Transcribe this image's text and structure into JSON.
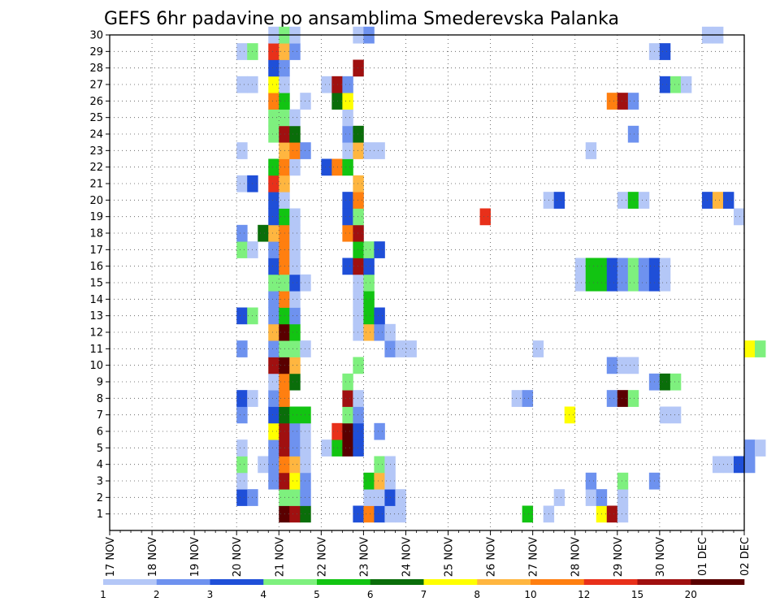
{
  "chart_data": {
    "type": "heatmap",
    "title": "GEFS 6hr padavine po ansamblima Smederevska Palanka",
    "xlabel": "",
    "ylabel": "",
    "x_tick_labels": [
      "17 NOV",
      "18 NOV",
      "19 NOV",
      "20 NOV",
      "21 NOV",
      "22 NOV",
      "23 NOV",
      "24 NOV",
      "25 NOV",
      "26 NOV",
      "27 NOV",
      "28 NOV",
      "29 NOV",
      "30 NOV",
      "01 DEC",
      "02 DEC"
    ],
    "y_tick_labels": [
      "1",
      "2",
      "3",
      "4",
      "5",
      "6",
      "7",
      "8",
      "9",
      "10",
      "11",
      "12",
      "13",
      "14",
      "15",
      "16",
      "17",
      "18",
      "19",
      "20",
      "21",
      "22",
      "23",
      "24",
      "25",
      "26",
      "27",
      "28",
      "29",
      "30"
    ],
    "x_range_days": [
      17,
      32
    ],
    "y_range_members": [
      0,
      30
    ],
    "grid": true,
    "grid_style": "dotted",
    "legend": {
      "placement": "bottom",
      "labels": [
        "1",
        "2",
        "3",
        "4",
        "5",
        "6",
        "7",
        "8",
        "10",
        "12",
        "15",
        "20"
      ],
      "colors": [
        "#b4c7f7",
        "#6e92ef",
        "#1f4fd8",
        "#7ef07e",
        "#12c412",
        "#0a6e0a",
        "#ffff00",
        "#ffb640",
        "#ff7f10",
        "#e8301a",
        "#a01010",
        "#5a0000"
      ]
    },
    "cells": [
      [
        1,
        21.0,
        11
      ],
      [
        1,
        21.25,
        10
      ],
      [
        1,
        21.5,
        5
      ],
      [
        1,
        22.75,
        2
      ],
      [
        1,
        23.0,
        8
      ],
      [
        1,
        23.25,
        2
      ],
      [
        1,
        23.5,
        0
      ],
      [
        1,
        23.75,
        0
      ],
      [
        1,
        26.75,
        4
      ],
      [
        1,
        27.25,
        0
      ],
      [
        1,
        28.5,
        6
      ],
      [
        1,
        28.75,
        10
      ],
      [
        1,
        29.0,
        0
      ],
      [
        2,
        21.0,
        3
      ],
      [
        2,
        21.25,
        3
      ],
      [
        2,
        21.5,
        1
      ],
      [
        2,
        20.0,
        2
      ],
      [
        2,
        20.25,
        1
      ],
      [
        2,
        23.0,
        0
      ],
      [
        2,
        23.25,
        0
      ],
      [
        2,
        23.5,
        2
      ],
      [
        2,
        23.75,
        0
      ],
      [
        2,
        27.5,
        0
      ],
      [
        2,
        28.25,
        0
      ],
      [
        2,
        28.5,
        1
      ],
      [
        2,
        29.0,
        0
      ],
      [
        3,
        20.75,
        1
      ],
      [
        3,
        21.0,
        10
      ],
      [
        3,
        21.25,
        6
      ],
      [
        3,
        21.5,
        1
      ],
      [
        3,
        20.0,
        0
      ],
      [
        3,
        23.0,
        4
      ],
      [
        3,
        23.25,
        7
      ],
      [
        3,
        23.5,
        0
      ],
      [
        3,
        28.25,
        1
      ],
      [
        3,
        29.0,
        3
      ],
      [
        3,
        29.75,
        1
      ],
      [
        4,
        20.0,
        3
      ],
      [
        4,
        20.5,
        0
      ],
      [
        4,
        20.75,
        1
      ],
      [
        4,
        21.0,
        8
      ],
      [
        4,
        21.25,
        7
      ],
      [
        4,
        21.5,
        0
      ],
      [
        4,
        23.25,
        3
      ],
      [
        4,
        23.5,
        0
      ],
      [
        4,
        31.25,
        0
      ],
      [
        4,
        31.5,
        0
      ],
      [
        4,
        31.75,
        2
      ],
      [
        4,
        32.0,
        1
      ],
      [
        5,
        20.0,
        0
      ],
      [
        5,
        20.75,
        1
      ],
      [
        5,
        21.0,
        10
      ],
      [
        5,
        21.25,
        1
      ],
      [
        5,
        21.5,
        0
      ],
      [
        5,
        22.0,
        0
      ],
      [
        5,
        22.25,
        4
      ],
      [
        5,
        22.5,
        11
      ],
      [
        5,
        22.75,
        2
      ],
      [
        5,
        32.0,
        1
      ],
      [
        5,
        32.25,
        0
      ],
      [
        6,
        20.75,
        6
      ],
      [
        6,
        21.0,
        10
      ],
      [
        6,
        21.25,
        1
      ],
      [
        6,
        21.5,
        0
      ],
      [
        6,
        22.25,
        9
      ],
      [
        6,
        22.5,
        11
      ],
      [
        6,
        22.75,
        2
      ],
      [
        6,
        23.25,
        1
      ],
      [
        7,
        20.0,
        1
      ],
      [
        7,
        20.75,
        2
      ],
      [
        7,
        21.0,
        5
      ],
      [
        7,
        21.25,
        4
      ],
      [
        7,
        21.5,
        4
      ],
      [
        7,
        22.5,
        3
      ],
      [
        7,
        22.75,
        1
      ],
      [
        7,
        27.75,
        6
      ],
      [
        7,
        30.0,
        0
      ],
      [
        7,
        30.25,
        0
      ],
      [
        8,
        20.0,
        2
      ],
      [
        8,
        20.25,
        0
      ],
      [
        8,
        20.75,
        1
      ],
      [
        8,
        21.0,
        8
      ],
      [
        8,
        22.5,
        10
      ],
      [
        8,
        22.75,
        0
      ],
      [
        8,
        26.5,
        0
      ],
      [
        8,
        26.75,
        1
      ],
      [
        8,
        28.75,
        1
      ],
      [
        8,
        29.0,
        11
      ],
      [
        8,
        29.25,
        3
      ],
      [
        9,
        20.75,
        0
      ],
      [
        9,
        21.0,
        8
      ],
      [
        9,
        21.25,
        5
      ],
      [
        9,
        22.5,
        3
      ],
      [
        9,
        29.75,
        1
      ],
      [
        9,
        30.0,
        5
      ],
      [
        9,
        30.25,
        3
      ],
      [
        10,
        20.75,
        10
      ],
      [
        10,
        21.0,
        11
      ],
      [
        10,
        21.25,
        7
      ],
      [
        10,
        22.75,
        3
      ],
      [
        10,
        28.75,
        1
      ],
      [
        10,
        29.0,
        0
      ],
      [
        10,
        29.25,
        0
      ],
      [
        11,
        20.0,
        1
      ],
      [
        11,
        20.75,
        1
      ],
      [
        11,
        21.0,
        3
      ],
      [
        11,
        21.25,
        3
      ],
      [
        11,
        21.5,
        0
      ],
      [
        11,
        23.5,
        1
      ],
      [
        11,
        23.75,
        0
      ],
      [
        11,
        24.0,
        0
      ],
      [
        11,
        27.0,
        0
      ],
      [
        11,
        32.0,
        6
      ],
      [
        11,
        32.25,
        3
      ],
      [
        12,
        20.75,
        7
      ],
      [
        12,
        21.0,
        11
      ],
      [
        12,
        21.25,
        4
      ],
      [
        12,
        22.75,
        0
      ],
      [
        12,
        23.0,
        7
      ],
      [
        12,
        23.25,
        1
      ],
      [
        12,
        23.5,
        0
      ],
      [
        13,
        20.0,
        2
      ],
      [
        13,
        20.25,
        3
      ],
      [
        13,
        20.75,
        1
      ],
      [
        13,
        21.0,
        4
      ],
      [
        13,
        21.25,
        1
      ],
      [
        13,
        22.75,
        0
      ],
      [
        13,
        23.0,
        4
      ],
      [
        13,
        23.25,
        2
      ],
      [
        14,
        20.75,
        1
      ],
      [
        14,
        21.0,
        8
      ],
      [
        14,
        21.25,
        0
      ],
      [
        14,
        22.75,
        0
      ],
      [
        14,
        23.0,
        4
      ],
      [
        15,
        20.75,
        3
      ],
      [
        15,
        21.0,
        3
      ],
      [
        15,
        21.25,
        2
      ],
      [
        15,
        21.5,
        0
      ],
      [
        15,
        22.75,
        0
      ],
      [
        15,
        23.0,
        3
      ],
      [
        15,
        28.0,
        0
      ],
      [
        15,
        28.25,
        4
      ],
      [
        15,
        28.5,
        4
      ],
      [
        15,
        28.75,
        2
      ],
      [
        15,
        29.0,
        1
      ],
      [
        15,
        29.25,
        3
      ],
      [
        15,
        29.5,
        1
      ],
      [
        15,
        29.75,
        2
      ],
      [
        15,
        30.0,
        0
      ],
      [
        16,
        20.75,
        2
      ],
      [
        16,
        21.0,
        8
      ],
      [
        16,
        21.25,
        0
      ],
      [
        16,
        22.5,
        2
      ],
      [
        16,
        22.75,
        10
      ],
      [
        16,
        23.0,
        2
      ],
      [
        16,
        28.0,
        0
      ],
      [
        16,
        28.25,
        4
      ],
      [
        16,
        28.5,
        4
      ],
      [
        16,
        28.75,
        2
      ],
      [
        16,
        29.0,
        1
      ],
      [
        16,
        29.25,
        3
      ],
      [
        16,
        29.5,
        1
      ],
      [
        16,
        29.75,
        2
      ],
      [
        16,
        30.0,
        0
      ],
      [
        17,
        20.0,
        3
      ],
      [
        17,
        20.25,
        0
      ],
      [
        17,
        20.75,
        1
      ],
      [
        17,
        21.0,
        8
      ],
      [
        17,
        21.25,
        0
      ],
      [
        17,
        22.75,
        4
      ],
      [
        17,
        23.0,
        3
      ],
      [
        17,
        23.25,
        2
      ],
      [
        18,
        20.0,
        1
      ],
      [
        18,
        20.5,
        5
      ],
      [
        18,
        20.75,
        7
      ],
      [
        18,
        21.0,
        8
      ],
      [
        18,
        21.25,
        0
      ],
      [
        18,
        22.5,
        8
      ],
      [
        18,
        22.75,
        10
      ],
      [
        19,
        20.75,
        2
      ],
      [
        19,
        21.0,
        4
      ],
      [
        19,
        21.25,
        0
      ],
      [
        19,
        22.5,
        2
      ],
      [
        19,
        22.75,
        3
      ],
      [
        19,
        25.75,
        9
      ],
      [
        19,
        31.75,
        0
      ],
      [
        20,
        20.75,
        2
      ],
      [
        20,
        21.0,
        0
      ],
      [
        20,
        22.5,
        2
      ],
      [
        20,
        22.75,
        8
      ],
      [
        20,
        27.25,
        0
      ],
      [
        20,
        27.5,
        2
      ],
      [
        20,
        29.0,
        0
      ],
      [
        20,
        29.25,
        4
      ],
      [
        20,
        29.5,
        0
      ],
      [
        20,
        31.0,
        2
      ],
      [
        20,
        31.25,
        7
      ],
      [
        20,
        31.5,
        2
      ],
      [
        21,
        20.0,
        0
      ],
      [
        21,
        20.25,
        2
      ],
      [
        21,
        20.75,
        9
      ],
      [
        21,
        21.0,
        7
      ],
      [
        21,
        22.75,
        7
      ],
      [
        22,
        20.75,
        4
      ],
      [
        22,
        21.0,
        8
      ],
      [
        22,
        21.25,
        0
      ],
      [
        22,
        22.0,
        2
      ],
      [
        22,
        22.25,
        8
      ],
      [
        22,
        22.5,
        4
      ],
      [
        23,
        20.0,
        0
      ],
      [
        23,
        21.0,
        7
      ],
      [
        23,
        21.25,
        8
      ],
      [
        23,
        21.5,
        1
      ],
      [
        23,
        22.5,
        0
      ],
      [
        23,
        22.75,
        7
      ],
      [
        23,
        23.0,
        0
      ],
      [
        23,
        23.25,
        0
      ],
      [
        23,
        28.25,
        0
      ],
      [
        24,
        20.75,
        3
      ],
      [
        24,
        21.0,
        10
      ],
      [
        24,
        21.25,
        5
      ],
      [
        24,
        22.5,
        1
      ],
      [
        24,
        22.75,
        5
      ],
      [
        24,
        29.25,
        1
      ],
      [
        25,
        20.75,
        3
      ],
      [
        25,
        21.0,
        3
      ],
      [
        25,
        21.25,
        0
      ],
      [
        25,
        22.5,
        0
      ],
      [
        26,
        20.75,
        8
      ],
      [
        26,
        21.0,
        4
      ],
      [
        26,
        21.5,
        0
      ],
      [
        26,
        22.25,
        5
      ],
      [
        26,
        22.5,
        6
      ],
      [
        26,
        28.75,
        8
      ],
      [
        26,
        29.0,
        10
      ],
      [
        26,
        29.25,
        1
      ],
      [
        27,
        20.0,
        0
      ],
      [
        27,
        20.25,
        0
      ],
      [
        27,
        20.75,
        6
      ],
      [
        27,
        21.0,
        0
      ],
      [
        27,
        22.0,
        0
      ],
      [
        27,
        22.25,
        10
      ],
      [
        27,
        22.5,
        1
      ],
      [
        27,
        30.0,
        2
      ],
      [
        27,
        30.25,
        3
      ],
      [
        27,
        30.5,
        0
      ],
      [
        28,
        20.75,
        2
      ],
      [
        28,
        21.0,
        1
      ],
      [
        28,
        22.75,
        10
      ],
      [
        29,
        20.0,
        0
      ],
      [
        29,
        20.25,
        3
      ],
      [
        29,
        20.75,
        9
      ],
      [
        29,
        21.0,
        7
      ],
      [
        29,
        21.25,
        1
      ],
      [
        29,
        29.75,
        0
      ],
      [
        29,
        30.0,
        2
      ],
      [
        30,
        20.75,
        0
      ],
      [
        30,
        21.0,
        3
      ],
      [
        30,
        21.25,
        0
      ],
      [
        30,
        22.75,
        0
      ],
      [
        30,
        23.0,
        1
      ],
      [
        30,
        31.0,
        0
      ],
      [
        30,
        31.25,
        0
      ]
    ]
  }
}
